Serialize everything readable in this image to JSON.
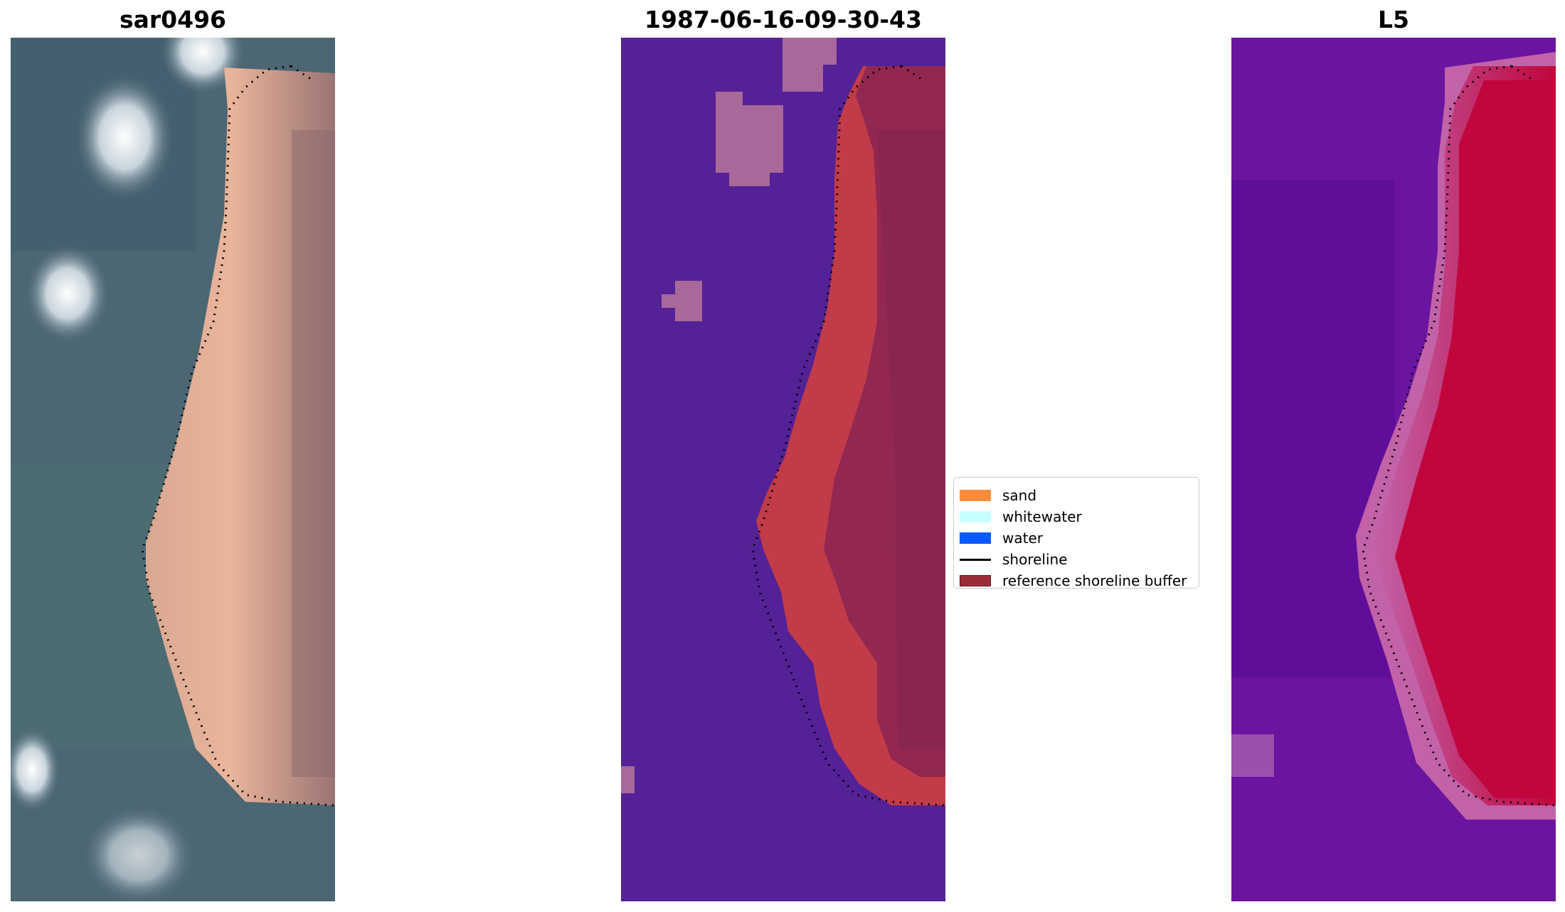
{
  "panels": [
    {
      "title": "sar0496"
    },
    {
      "title": "1987-06-16-09-30-43"
    },
    {
      "title": "L5"
    }
  ],
  "legend": {
    "items": [
      {
        "label": "sand",
        "color": "#ff8c3c",
        "type": "patch"
      },
      {
        "label": "whitewater",
        "color": "#c8ffff",
        "type": "patch"
      },
      {
        "label": "water",
        "color": "#0a5aff",
        "type": "patch"
      },
      {
        "label": "shoreline",
        "color": "#000000",
        "type": "line"
      },
      {
        "label": "reference shoreline buffer",
        "color": "#9b2d3a",
        "edge": "#6b1420",
        "type": "patch"
      }
    ]
  },
  "colors": {
    "rgb_water": "#4a6572",
    "rgb_sand": "#e8b49a",
    "class_background": "#542196",
    "class_sand_buffer": "#c23b48",
    "class_buffer": "#8a2654",
    "class_cloud": "#a8689a",
    "mndwi_low": "#5b0f98",
    "mndwi_high": "#c0063d",
    "mndwi_edge": "#c262a8"
  }
}
